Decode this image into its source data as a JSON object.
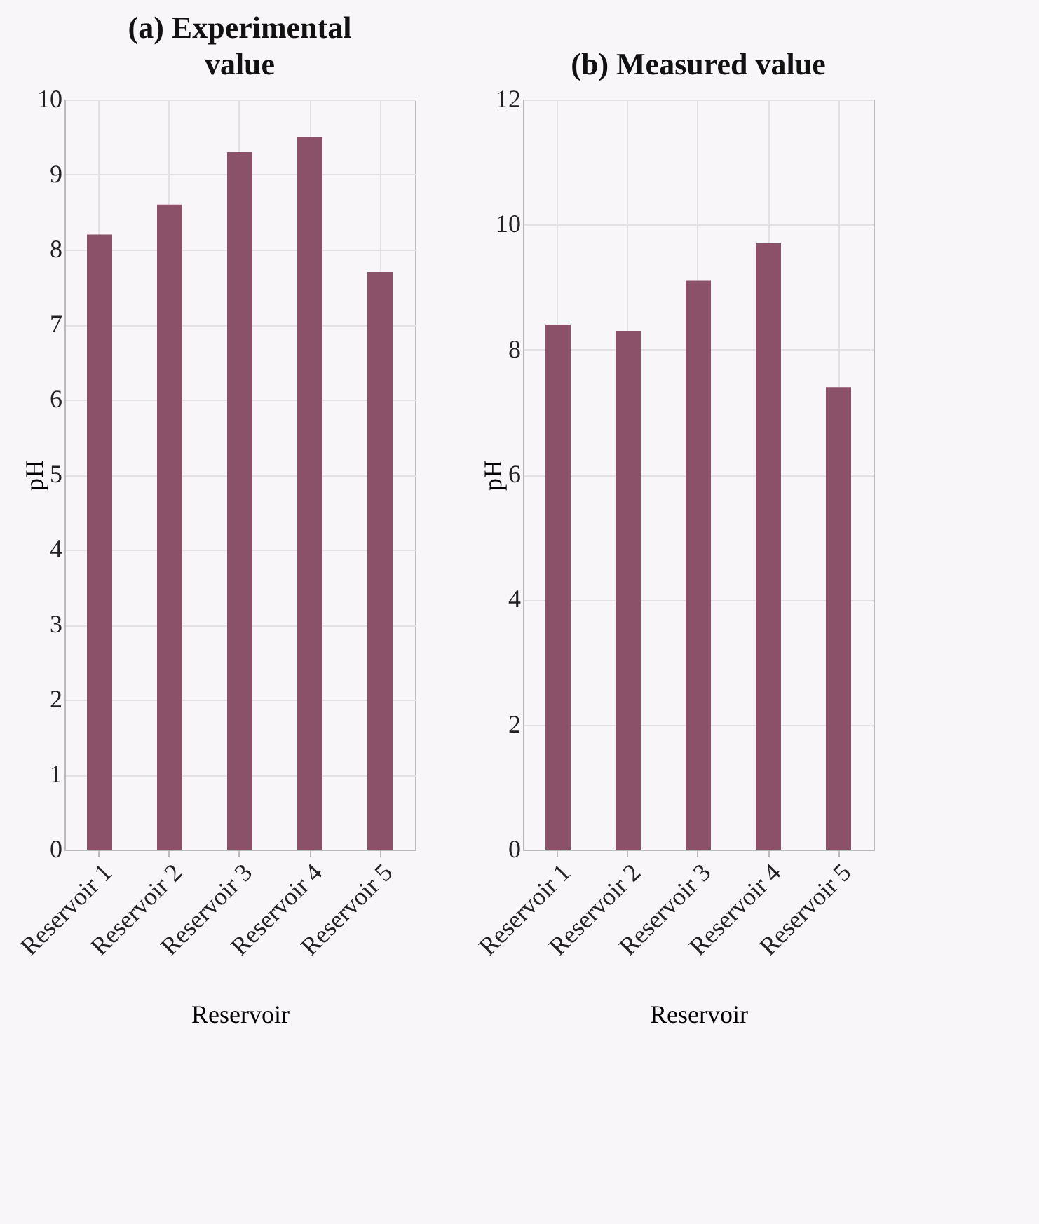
{
  "chart_data": [
    {
      "type": "bar",
      "title": "(a) Experimental value",
      "xlabel": "Reservoir",
      "ylabel": "pH",
      "categories": [
        "Reservoir 1",
        "Reservoir 2",
        "Reservoir 3",
        "Reservoir 4",
        "Reservoir 5"
      ],
      "values": [
        8.2,
        8.6,
        9.3,
        9.5,
        7.7
      ],
      "color": "#8b5169",
      "ylim": [
        0,
        10
      ],
      "yticks": [
        0,
        1,
        2,
        3,
        4,
        5,
        6,
        7,
        8,
        9,
        10
      ],
      "grid": true
    },
    {
      "type": "bar",
      "title": "(b) Measured value",
      "xlabel": "Reservoir",
      "ylabel": "pH",
      "categories": [
        "Reservoir 1",
        "Reservoir 2",
        "Reservoir 3",
        "Reservoir 4",
        "Reservoir 5"
      ],
      "values": [
        8.4,
        8.3,
        9.1,
        9.7,
        7.4
      ],
      "color": "#8b5169",
      "ylim": [
        0,
        12
      ],
      "yticks": [
        0,
        2,
        4,
        6,
        8,
        10,
        12
      ],
      "grid": true
    }
  ]
}
